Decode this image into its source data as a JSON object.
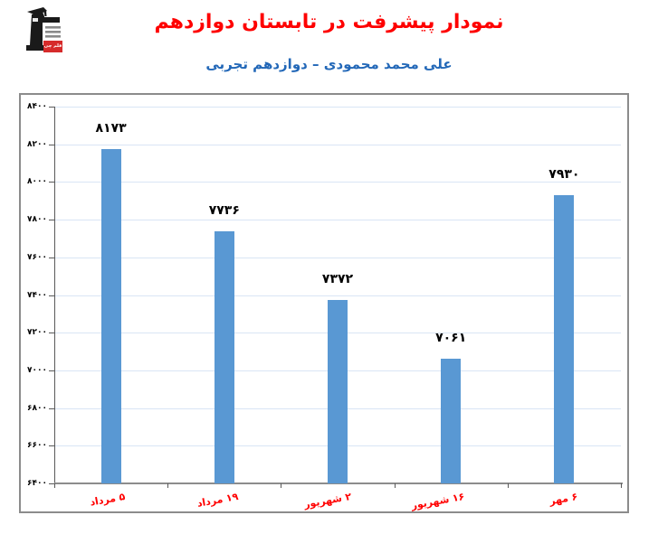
{
  "header": {
    "title": "نمودار پیشرفت در تابستان دوازدهم",
    "title_color": "#FE0000",
    "subtitle": "علی محمد محمودی – دوازدهم تجربی",
    "subtitle_color": "#2368B8"
  },
  "logo": {
    "name": "kanoon-ghalamchi-logo",
    "badge": "قلم چی",
    "badge_color": "#D62B2B",
    "figure_color": "#1A1A1A",
    "lines_color": "#8A8A8A"
  },
  "chart_data": {
    "type": "bar",
    "categories": [
      "۵ مرداد",
      "۱۹ مرداد",
      "۲ شهریور",
      "۱۶ شهریور",
      "۶ مهر"
    ],
    "values": [
      8173,
      7736,
      7372,
      7061,
      7930
    ],
    "value_labels": [
      "۸۱۷۳",
      "۷۷۳۶",
      "۷۳۷۲",
      "۷۰۶۱",
      "۷۹۳۰"
    ],
    "y_ticks": [
      {
        "value": 8400,
        "label": "۸۴۰۰"
      },
      {
        "value": 8200,
        "label": "۸۲۰۰"
      },
      {
        "value": 8000,
        "label": "۸۰۰۰"
      },
      {
        "value": 7800,
        "label": "۷۸۰۰"
      },
      {
        "value": 7600,
        "label": "۷۶۰۰"
      },
      {
        "value": 7400,
        "label": "۷۴۰۰"
      },
      {
        "value": 7200,
        "label": "۷۲۰۰"
      },
      {
        "value": 7000,
        "label": "۷۰۰۰"
      },
      {
        "value": 6800,
        "label": "۶۸۰۰"
      },
      {
        "value": 6600,
        "label": "۶۶۰۰"
      },
      {
        "value": 6400,
        "label": "۶۴۰۰"
      }
    ],
    "ylim": [
      6400,
      8400
    ],
    "title": "نمودار پیشرفت در تابستان دوازدهم",
    "xlabel": "",
    "ylabel": "",
    "legend": null,
    "grid": true,
    "bar_color": "#5998D3",
    "gridline_color": "#D9E5F5",
    "category_label_color": "#FF0000",
    "value_label_color": "#000000"
  }
}
